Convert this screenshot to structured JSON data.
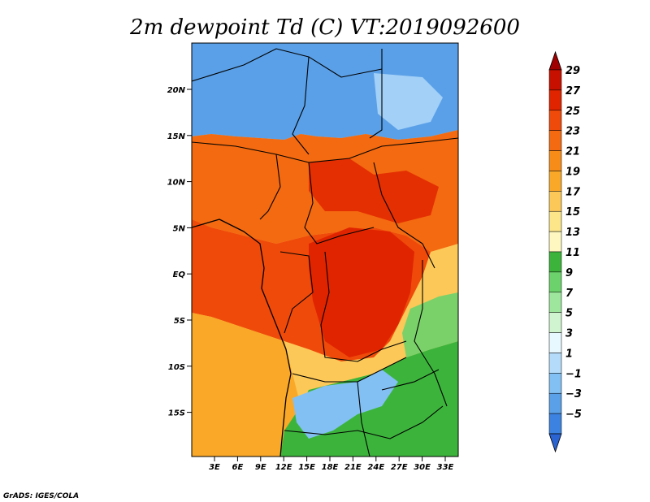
{
  "title": "2m dewpoint Td (C) VT:2019092600",
  "credit": "GrADS: IGES/COLA",
  "map": {
    "variable": "2m dewpoint",
    "units": "C",
    "valid_time": "2019092600",
    "lat_labels": [
      "20N",
      "15N",
      "10N",
      "5N",
      "EQ",
      "5S",
      "10S",
      "15S"
    ],
    "lon_labels": [
      "3E",
      "6E",
      "9E",
      "12E",
      "15E",
      "18E",
      "21E",
      "24E",
      "27E",
      "30E",
      "33E"
    ]
  },
  "colorbar": {
    "labels": [
      "29",
      "27",
      "25",
      "23",
      "21",
      "19",
      "17",
      "15",
      "13",
      "11",
      "9",
      "7",
      "5",
      "3",
      "1",
      "−1",
      "−3",
      "−5"
    ],
    "colors": [
      "#a00000",
      "#c81000",
      "#e02400",
      "#ef4a0a",
      "#f46a10",
      "#f88c18",
      "#faa828",
      "#fcc858",
      "#fde68a",
      "#fef8c0",
      "#3cb43c",
      "#6cd26c",
      "#9ee69e",
      "#d0f4d0",
      "#e8f8ff",
      "#b4dcfa",
      "#82c0f4",
      "#5aa0e8",
      "#3c82e0",
      "#2a64d2"
    ]
  },
  "regions": {
    "sahara": "#5aa0e8",
    "sahel": "#f46a10",
    "central": "#ef4a0a",
    "congo": "#e02400",
    "southwest": "#faa828",
    "southeast": "#3cb43c",
    "east_highlands": "#82c0f4"
  }
}
